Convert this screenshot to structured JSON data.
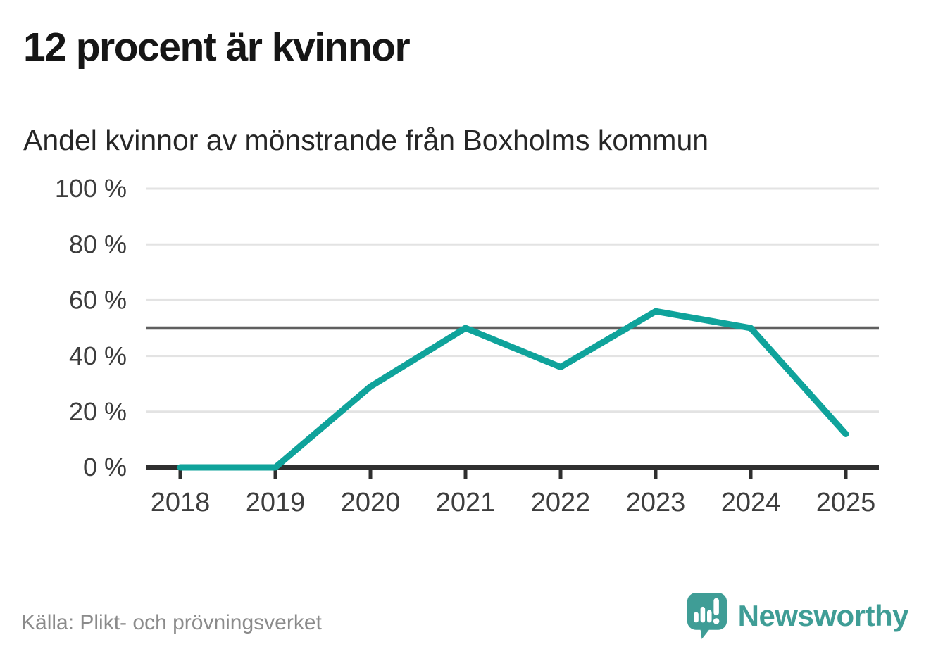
{
  "header": {
    "title": "12 procent är kvinnor",
    "subtitle": "Andel kvinnor av mönstrande från Boxholms kommun"
  },
  "chart_data": {
    "type": "line",
    "title": "12 procent är kvinnor",
    "subtitle": "Andel kvinnor av mönstrande från Boxholms kommun",
    "x": [
      "2018",
      "2019",
      "2020",
      "2021",
      "2022",
      "2023",
      "2024",
      "2025"
    ],
    "series": [
      {
        "name": "Andel kvinnor av mönstrande",
        "values": [
          0,
          0,
          29,
          50,
          36,
          56,
          50,
          12
        ]
      }
    ],
    "unit": "%",
    "ylim": [
      0,
      100
    ],
    "yticks": [
      0,
      20,
      40,
      60,
      80,
      100
    ],
    "ytick_labels": [
      "0 %",
      "20 %",
      "40 %",
      "60 %",
      "80 %",
      "100 %"
    ],
    "reference_line": 50,
    "grid": true,
    "legend": "none"
  },
  "footer": {
    "source": "Källa: Plikt- och prövningsverket",
    "brand": "Newsworthy"
  },
  "colors": {
    "accent": "#0fa39b",
    "logo": "#3f9d96",
    "text_dark": "#161616",
    "axis_text": "#3d3d3d",
    "grid": "#e3e3e3",
    "reference": "#5f5f5f",
    "axis": "#2f2f2f",
    "muted": "#8b8b8b"
  }
}
